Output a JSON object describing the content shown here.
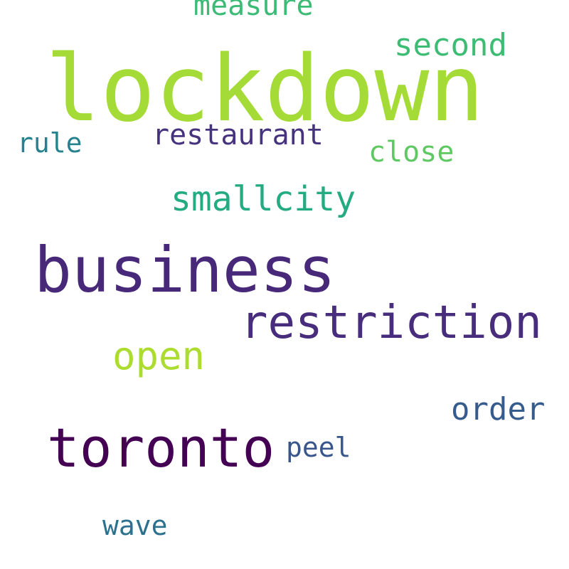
{
  "words": [
    {
      "id": "lockdown",
      "text": "lockdown",
      "color": "#a5db36"
    },
    {
      "id": "business",
      "text": "business",
      "color": "#482878"
    },
    {
      "id": "toronto",
      "text": "toronto",
      "color": "#440154"
    },
    {
      "id": "restriction",
      "text": "restriction",
      "color": "#472d7b"
    },
    {
      "id": "open",
      "text": "open",
      "color": "#addc30"
    },
    {
      "id": "smallcity",
      "text": "smallcity",
      "color": "#25ab82"
    },
    {
      "id": "second",
      "text": "second",
      "color": "#3dbc74"
    },
    {
      "id": "measure",
      "text": "measure",
      "color": "#3bbb75"
    },
    {
      "id": "restaurant",
      "text": "restaurant",
      "color": "#46337e"
    },
    {
      "id": "close",
      "text": "close",
      "color": "#5ec962"
    },
    {
      "id": "order",
      "text": "order",
      "color": "#365c8d"
    },
    {
      "id": "rule",
      "text": "rule",
      "color": "#26828e"
    },
    {
      "id": "peel",
      "text": "peel",
      "color": "#39568c"
    },
    {
      "id": "wave",
      "text": "wave",
      "color": "#2c718e"
    }
  ]
}
